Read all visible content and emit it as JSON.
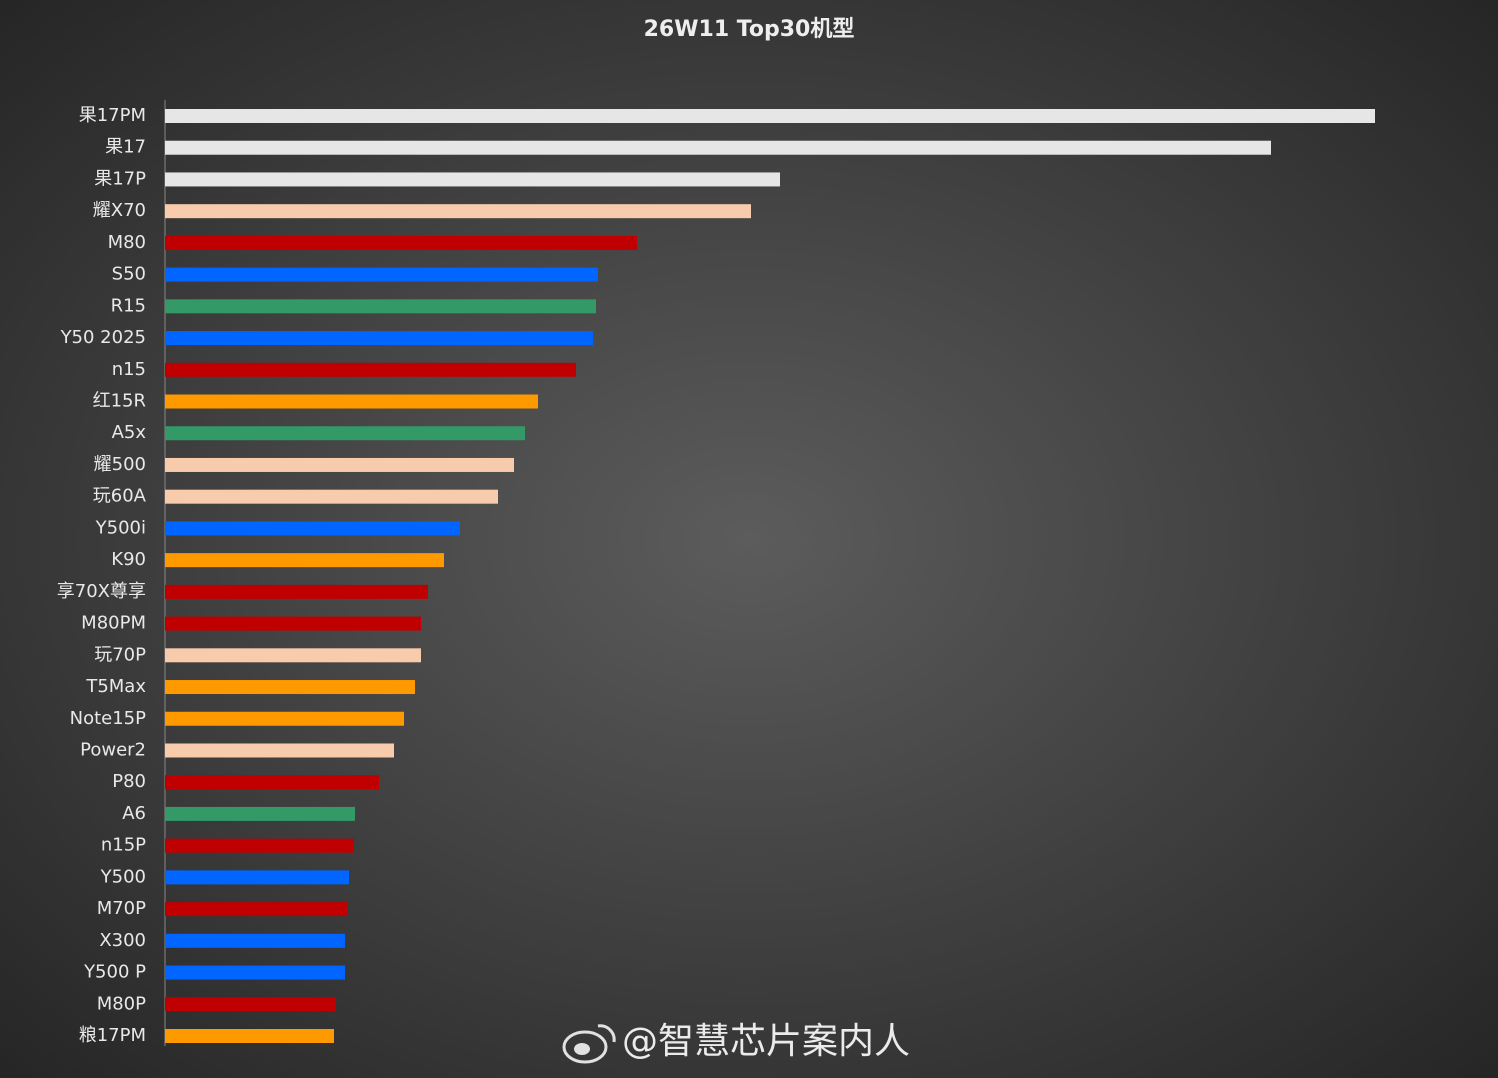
{
  "chart_data": {
    "type": "barh",
    "title": "26W11 Top30机型",
    "categories": [
      "果17PM",
      "果17",
      "果17P",
      "耀X70",
      "M80",
      "S50",
      "R15",
      "Y50 2025",
      "n15",
      "红15R",
      "A5x",
      "耀500",
      "玩60A",
      "Y500i",
      "K90",
      "享70X尊享",
      "M80PM",
      "玩70P",
      "T5Max",
      "Note15P",
      "Power2",
      "P80",
      "A6",
      "n15P",
      "Y500",
      "M70P",
      "X300",
      "Y500 P",
      "M80P",
      "粮17PM"
    ],
    "values": [
      1210,
      1106,
      615,
      586,
      472,
      433,
      431,
      428,
      411,
      373,
      360,
      349,
      333,
      295,
      279,
      263,
      256,
      256,
      250,
      239,
      229,
      214,
      190,
      189,
      184,
      183,
      180,
      180,
      171,
      169
    ],
    "colors": [
      "#e6e6e6",
      "#e6e6e6",
      "#e6e6e6",
      "#f8cbad",
      "#c00000",
      "#0066ff",
      "#339966",
      "#0066ff",
      "#c00000",
      "#ff9900",
      "#339966",
      "#f8cbad",
      "#f8cbad",
      "#0066ff",
      "#ff9900",
      "#c00000",
      "#c00000",
      "#f8cbad",
      "#ff9900",
      "#ff9900",
      "#f8cbad",
      "#c00000",
      "#339966",
      "#c00000",
      "#0066ff",
      "#c00000",
      "#0066ff",
      "#0066ff",
      "#c00000",
      "#ff9900"
    ]
  },
  "watermark": "@智慧芯片案内人"
}
